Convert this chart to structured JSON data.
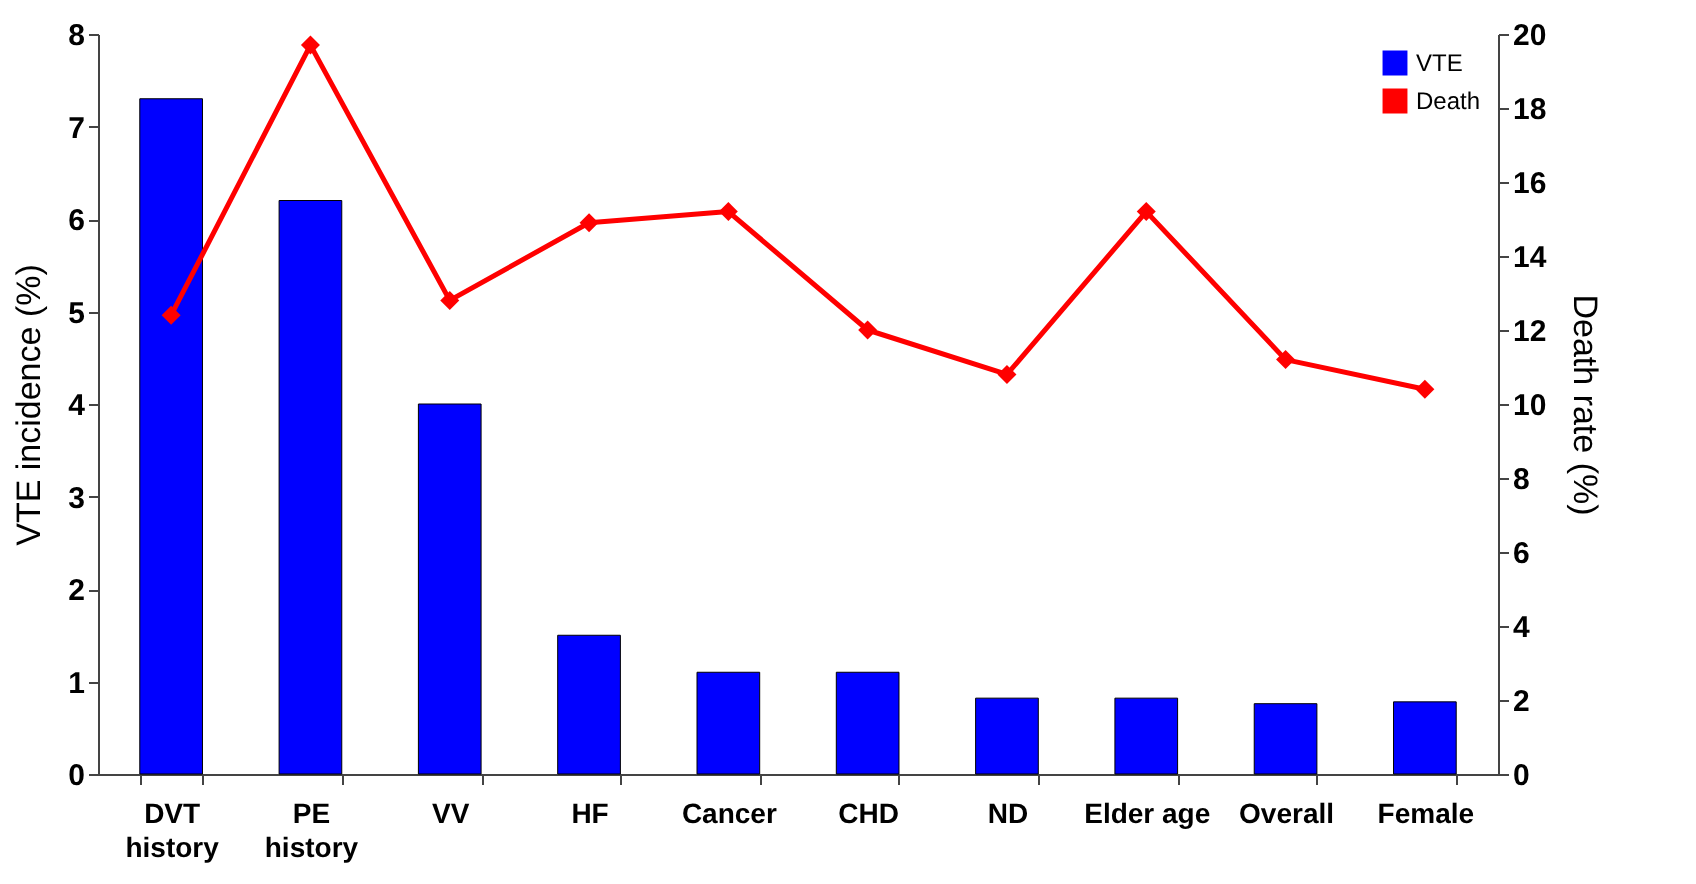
{
  "chart_data": {
    "type": "bar",
    "categories": [
      "DVT\nhistory",
      "PE\nhistory",
      "VV",
      "HF",
      "Cancer",
      "CHD",
      "ND",
      "Elder age",
      "Overall",
      "Female"
    ],
    "ylabel": "VTE incidence (%)",
    "y2label": "Death rate (%)",
    "ylim": [
      0,
      8
    ],
    "yticks": [
      0,
      1,
      2,
      3,
      4,
      5,
      6,
      7,
      8
    ],
    "y2lim": [
      0,
      20
    ],
    "y2ticks": [
      0,
      2,
      4,
      6,
      8,
      10,
      12,
      14,
      16,
      18,
      20
    ],
    "grid": false,
    "legend": "top right",
    "marker": "diamond",
    "series": [
      {
        "name": "VTE",
        "color": "#0000ff",
        "values": [
          7.3,
          6.2,
          4.0,
          1.5,
          1.1,
          1.1,
          0.82,
          0.82,
          0.76,
          0.78
        ]
      },
      {
        "name": "Death",
        "type": "line",
        "axis": "y2",
        "color": "#ff0000",
        "values": [
          12.4,
          19.7,
          12.8,
          14.9,
          15.2,
          12.0,
          10.8,
          15.2,
          11.2,
          10.4
        ]
      }
    ]
  }
}
